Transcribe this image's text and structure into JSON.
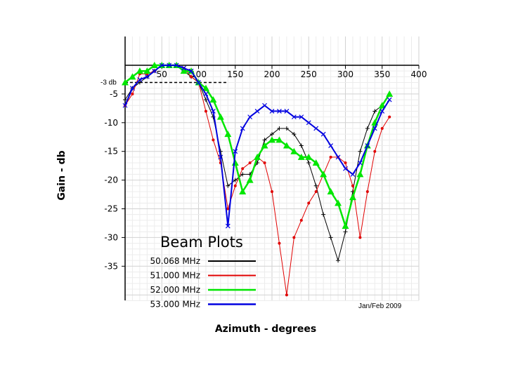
{
  "chart_data": {
    "type": "line",
    "title": "",
    "xlabel": "Azimuth - degrees",
    "ylabel": "Gain - db",
    "xlim": [
      0,
      400
    ],
    "ylim": [
      -41,
      1
    ],
    "x_ticks": [
      50,
      100,
      150,
      200,
      250,
      300,
      350,
      400
    ],
    "y_ticks": [
      -5,
      -10,
      -15,
      -20,
      -25,
      -30,
      -35
    ],
    "grid": true,
    "reference_line": {
      "label": "-3 db",
      "y": -3,
      "x_range": [
        0,
        140
      ]
    },
    "legend": {
      "title": "Beam Plots",
      "placement": "bottom-left"
    },
    "annotation": "Jan/Feb 2009",
    "series": [
      {
        "name": "50.068 MHz",
        "color": "#000000",
        "marker": "plus",
        "points": [
          [
            0,
            -6
          ],
          [
            10,
            -4
          ],
          [
            20,
            -3
          ],
          [
            30,
            -2
          ],
          [
            40,
            -1
          ],
          [
            50,
            0
          ],
          [
            60,
            0
          ],
          [
            70,
            0
          ],
          [
            80,
            -1
          ],
          [
            90,
            -2
          ],
          [
            100,
            -3
          ],
          [
            110,
            -6
          ],
          [
            120,
            -9
          ],
          [
            130,
            -15
          ],
          [
            140,
            -21
          ],
          [
            150,
            -20
          ],
          [
            160,
            -19
          ],
          [
            170,
            -19
          ],
          [
            180,
            -17
          ],
          [
            190,
            -13
          ],
          [
            200,
            -12
          ],
          [
            210,
            -11
          ],
          [
            220,
            -11
          ],
          [
            230,
            -12
          ],
          [
            240,
            -14
          ],
          [
            250,
            -17
          ],
          [
            260,
            -21
          ],
          [
            270,
            -26
          ],
          [
            280,
            -30
          ],
          [
            290,
            -34
          ],
          [
            300,
            -29
          ],
          [
            310,
            -22
          ],
          [
            320,
            -15
          ],
          [
            330,
            -11
          ],
          [
            340,
            -8
          ],
          [
            350,
            -7
          ]
        ]
      },
      {
        "name": "51.000 MHz",
        "color": "#e00000",
        "marker": "dot",
        "points": [
          [
            0,
            -7
          ],
          [
            10,
            -5
          ],
          [
            20,
            -1.5
          ],
          [
            30,
            -1.5
          ],
          [
            40,
            -1
          ],
          [
            50,
            0
          ],
          [
            60,
            0
          ],
          [
            70,
            0
          ],
          [
            80,
            -0.5
          ],
          [
            90,
            -2
          ],
          [
            100,
            -3
          ],
          [
            110,
            -8
          ],
          [
            120,
            -13
          ],
          [
            130,
            -17
          ],
          [
            140,
            -25
          ],
          [
            150,
            -21
          ],
          [
            160,
            -18
          ],
          [
            170,
            -17
          ],
          [
            180,
            -16
          ],
          [
            190,
            -17
          ],
          [
            200,
            -22
          ],
          [
            210,
            -31
          ],
          [
            220,
            -40
          ],
          [
            230,
            -30
          ],
          [
            240,
            -27
          ],
          [
            250,
            -24
          ],
          [
            260,
            -22
          ],
          [
            270,
            -19
          ],
          [
            280,
            -16
          ],
          [
            290,
            -16
          ],
          [
            300,
            -17
          ],
          [
            310,
            -21
          ],
          [
            320,
            -30
          ],
          [
            330,
            -22
          ],
          [
            340,
            -15
          ],
          [
            350,
            -11
          ],
          [
            360,
            -9
          ]
        ]
      },
      {
        "name": "52.000 MHz",
        "color": "#00e600",
        "marker": "triangle",
        "points": [
          [
            0,
            -3
          ],
          [
            10,
            -2
          ],
          [
            20,
            -1
          ],
          [
            30,
            -1
          ],
          [
            40,
            0
          ],
          [
            50,
            0
          ],
          [
            60,
            0
          ],
          [
            70,
            0
          ],
          [
            80,
            -1
          ],
          [
            90,
            -1
          ],
          [
            100,
            -3
          ],
          [
            110,
            -4
          ],
          [
            120,
            -6
          ],
          [
            130,
            -9
          ],
          [
            140,
            -12
          ],
          [
            150,
            -17
          ],
          [
            160,
            -22
          ],
          [
            170,
            -20
          ],
          [
            180,
            -16
          ],
          [
            190,
            -14
          ],
          [
            200,
            -13
          ],
          [
            210,
            -13
          ],
          [
            220,
            -14
          ],
          [
            230,
            -15
          ],
          [
            240,
            -16
          ],
          [
            250,
            -16
          ],
          [
            260,
            -17
          ],
          [
            270,
            -19
          ],
          [
            280,
            -22
          ],
          [
            290,
            -24
          ],
          [
            300,
            -28
          ],
          [
            310,
            -23
          ],
          [
            320,
            -19
          ],
          [
            330,
            -14
          ],
          [
            340,
            -10
          ],
          [
            350,
            -7
          ],
          [
            360,
            -5
          ]
        ]
      },
      {
        "name": "53.000 MHz",
        "color": "#0000e0",
        "marker": "cross",
        "points": [
          [
            0,
            -7
          ],
          [
            10,
            -4
          ],
          [
            20,
            -2.5
          ],
          [
            30,
            -2
          ],
          [
            40,
            -1
          ],
          [
            50,
            0
          ],
          [
            60,
            0
          ],
          [
            70,
            0
          ],
          [
            80,
            -0.5
          ],
          [
            90,
            -1
          ],
          [
            100,
            -3
          ],
          [
            110,
            -5
          ],
          [
            120,
            -8
          ],
          [
            130,
            -16
          ],
          [
            140,
            -28
          ],
          [
            150,
            -15
          ],
          [
            160,
            -11
          ],
          [
            170,
            -9
          ],
          [
            180,
            -8
          ],
          [
            190,
            -7
          ],
          [
            200,
            -8
          ],
          [
            210,
            -8
          ],
          [
            220,
            -8
          ],
          [
            230,
            -9
          ],
          [
            240,
            -9
          ],
          [
            250,
            -10
          ],
          [
            260,
            -11
          ],
          [
            270,
            -12
          ],
          [
            280,
            -14
          ],
          [
            290,
            -16
          ],
          [
            300,
            -18
          ],
          [
            310,
            -19
          ],
          [
            320,
            -17
          ],
          [
            330,
            -14
          ],
          [
            340,
            -11
          ],
          [
            350,
            -8
          ],
          [
            360,
            -6
          ]
        ]
      }
    ]
  }
}
